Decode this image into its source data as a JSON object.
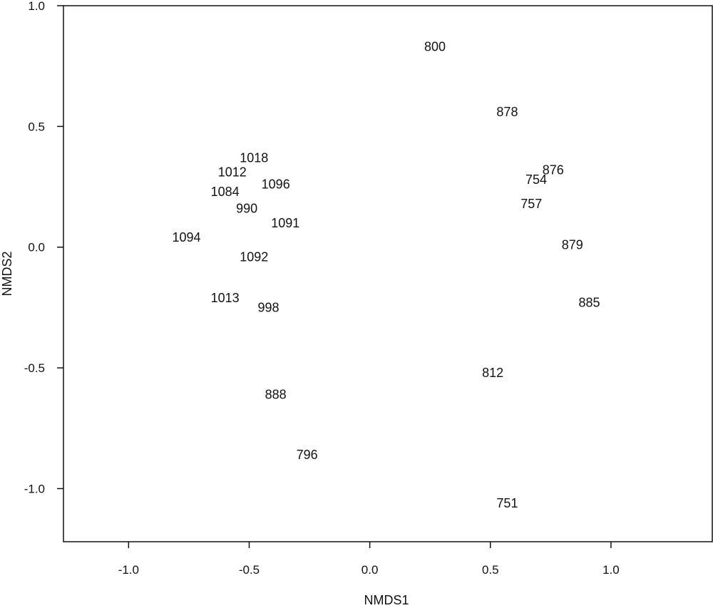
{
  "chart_data": {
    "type": "scatter",
    "title": "",
    "xlabel": "NMDS1",
    "ylabel": "NMDS2",
    "xlim": [
      -1.27,
      1.42
    ],
    "ylim": [
      -1.22,
      1.0
    ],
    "xticks": [
      -1.0,
      -0.5,
      0.0,
      0.5,
      1.0
    ],
    "xtick_labels": [
      "-1.0",
      "-0.5",
      "0.0",
      "0.5",
      "1.0"
    ],
    "yticks": [
      1.0,
      0.5,
      0.0,
      -0.5,
      -1.0
    ],
    "ytick_labels": [
      "1.0",
      "0.5",
      "0.0",
      "-0.5",
      "-1.0"
    ],
    "grid": false,
    "legend": "none",
    "marker": "text-label",
    "points": [
      {
        "label": "800",
        "x": 0.27,
        "y": 0.83
      },
      {
        "label": "878",
        "x": 0.57,
        "y": 0.56
      },
      {
        "label": "876",
        "x": 0.76,
        "y": 0.32
      },
      {
        "label": "754",
        "x": 0.69,
        "y": 0.28
      },
      {
        "label": "757",
        "x": 0.67,
        "y": 0.18
      },
      {
        "label": "879",
        "x": 0.84,
        "y": 0.01
      },
      {
        "label": "885",
        "x": 0.91,
        "y": -0.23
      },
      {
        "label": "812",
        "x": 0.51,
        "y": -0.52
      },
      {
        "label": "751",
        "x": 0.57,
        "y": -1.06
      },
      {
        "label": "1018",
        "x": -0.48,
        "y": 0.37
      },
      {
        "label": "1012",
        "x": -0.57,
        "y": 0.31
      },
      {
        "label": "1096",
        "x": -0.39,
        "y": 0.26
      },
      {
        "label": "1084",
        "x": -0.6,
        "y": 0.23
      },
      {
        "label": "990",
        "x": -0.51,
        "y": 0.16
      },
      {
        "label": "1091",
        "x": -0.35,
        "y": 0.1
      },
      {
        "label": "1094",
        "x": -0.76,
        "y": 0.04
      },
      {
        "label": "1092",
        "x": -0.48,
        "y": -0.04
      },
      {
        "label": "1013",
        "x": -0.6,
        "y": -0.21
      },
      {
        "label": "998",
        "x": -0.42,
        "y": -0.25
      },
      {
        "label": "888",
        "x": -0.39,
        "y": -0.61
      },
      {
        "label": "796",
        "x": -0.26,
        "y": -0.86
      }
    ]
  }
}
